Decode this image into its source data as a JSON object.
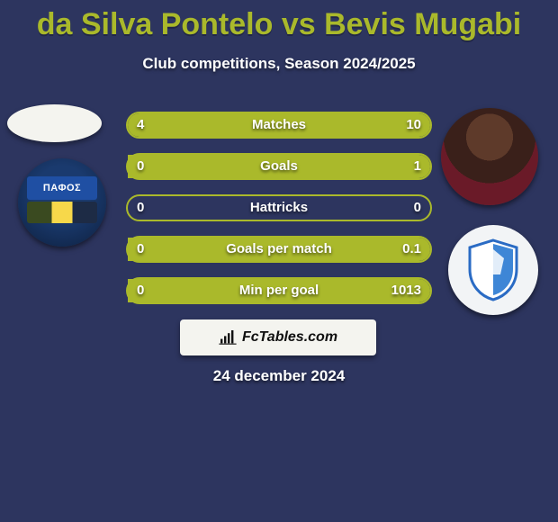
{
  "title": "da Silva Pontelo vs Bevis Mugabi",
  "subtitle": "Club competitions, Season 2024/2025",
  "date": "24 december 2024",
  "attribution": "FcTables.com",
  "colors": {
    "background": "#2d355f",
    "accent": "#aab92b",
    "text": "#ffffff"
  },
  "left_badge_text": "ΠΑΦΟΣ",
  "stats": [
    {
      "label": "Matches",
      "left_value": "4",
      "right_value": "10",
      "left_fill_pct": 28,
      "right_fill_pct": 72
    },
    {
      "label": "Goals",
      "left_value": "0",
      "right_value": "1",
      "left_fill_pct": 0,
      "right_fill_pct": 100
    },
    {
      "label": "Hattricks",
      "left_value": "0",
      "right_value": "0",
      "left_fill_pct": 0,
      "right_fill_pct": 0
    },
    {
      "label": "Goals per match",
      "left_value": "0",
      "right_value": "0.1",
      "left_fill_pct": 0,
      "right_fill_pct": 100
    },
    {
      "label": "Min per goal",
      "left_value": "0",
      "right_value": "1013",
      "left_fill_pct": 0,
      "right_fill_pct": 100
    }
  ]
}
